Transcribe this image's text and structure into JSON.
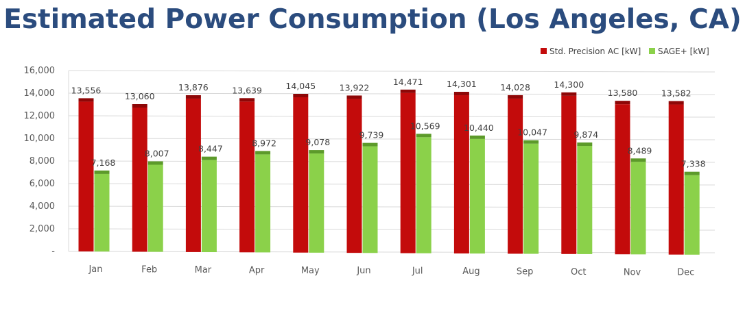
{
  "title": "Estimated Power Consumption (Los Angeles, CA)",
  "colors": {
    "series1_front": "#c30b0b",
    "series1_top": "#8e0707",
    "series2_front": "#8bd14a",
    "series2_top": "#5c9a2a",
    "title": "#2b4c7e"
  },
  "chart_data": {
    "type": "bar",
    "categories": [
      "Jan",
      "Feb",
      "Mar",
      "Apr",
      "May",
      "Jun",
      "Jul",
      "Aug",
      "Sep",
      "Oct",
      "Nov",
      "Dec"
    ],
    "series": [
      {
        "name": "Std. Precision AC [kW]",
        "values": [
          13556,
          13060,
          13876,
          13639,
          14045,
          13922,
          14471,
          14301,
          14028,
          14300,
          13580,
          13582
        ],
        "labels": [
          "13,556",
          "13,060",
          "13,876",
          "13,639",
          "14,045",
          "13,922",
          "14,471",
          "14,301",
          "14,028",
          "14,300",
          "13,580",
          "13,582"
        ]
      },
      {
        "name": "SAGE+ [kW]",
        "values": [
          7168,
          8007,
          8447,
          8972,
          9078,
          9739,
          10569,
          10440,
          10047,
          9874,
          8489,
          7338
        ],
        "labels": [
          "7,168",
          "8,007",
          "8,447",
          "8,972",
          "9,078",
          "9,739",
          "10,569",
          "10,440",
          "10,047",
          "9,874",
          "8,489",
          "7,338"
        ]
      }
    ],
    "ylim": [
      0,
      16000
    ],
    "yticks": [
      "-",
      "2,000",
      "4,000",
      "6,000",
      "8,000",
      "10,000",
      "12,000",
      "14,000",
      "16,000"
    ],
    "grid": true,
    "legend": "top-right",
    "style": "3d-clustered-column"
  }
}
